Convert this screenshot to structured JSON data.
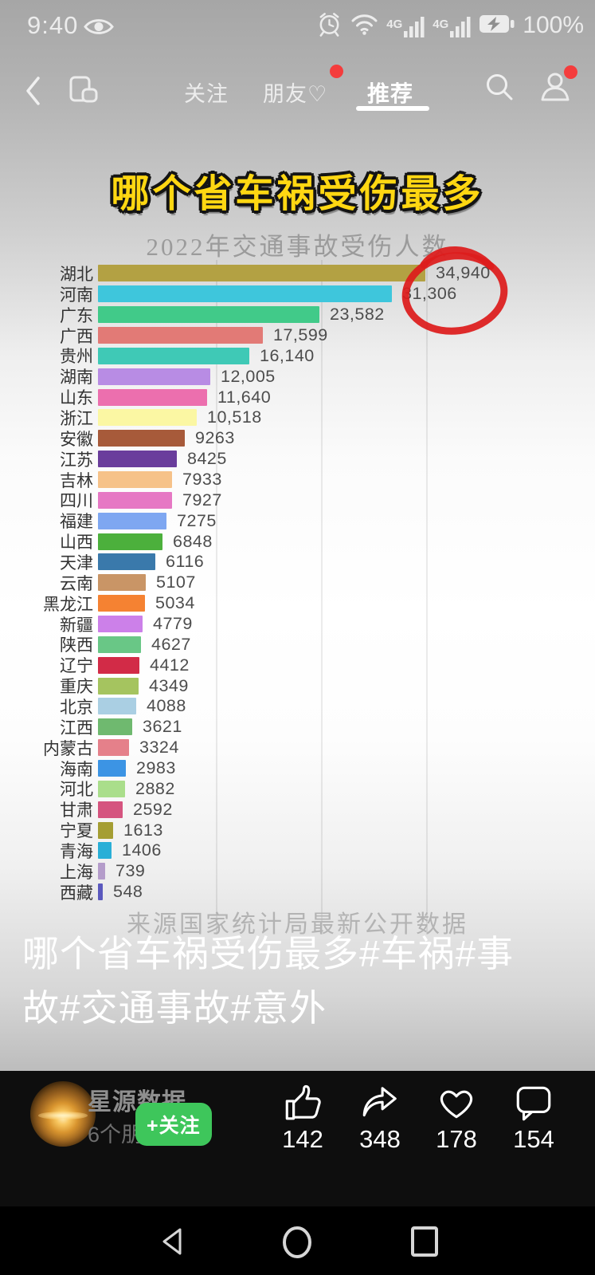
{
  "status_bar": {
    "time": "9:40",
    "battery": "100%",
    "network": [
      "4G",
      "4G"
    ]
  },
  "top_nav": {
    "tabs": [
      {
        "label": "关注",
        "active": false
      },
      {
        "label": "朋友♡",
        "active": false,
        "badge": true
      },
      {
        "label": "推荐",
        "active": true
      }
    ]
  },
  "overlay": {
    "headline": "哪个省车祸受伤最多"
  },
  "chart_data": {
    "type": "bar",
    "orientation": "horizontal",
    "title": "2022年交通事故受伤人数",
    "source": "来源国家统计局最新公开数据",
    "xlim": [
      0,
      35000
    ],
    "grid": true,
    "categories": [
      "湖北",
      "河南",
      "广东",
      "广西",
      "贵州",
      "湖南",
      "山东",
      "浙江",
      "安徽",
      "江苏",
      "吉林",
      "四川",
      "福建",
      "山西",
      "天津",
      "云南",
      "黑龙江",
      "新疆",
      "陕西",
      "辽宁",
      "重庆",
      "北京",
      "江西",
      "内蒙古",
      "海南",
      "河北",
      "甘肃",
      "宁夏",
      "青海",
      "上海",
      "西藏"
    ],
    "values": [
      34940,
      31306,
      23582,
      17599,
      16140,
      12005,
      11640,
      10518,
      9263,
      8425,
      7933,
      7927,
      7275,
      6848,
      6116,
      5107,
      5034,
      4779,
      4627,
      4412,
      4349,
      4088,
      3621,
      3324,
      2983,
      2882,
      2592,
      1613,
      1406,
      739,
      548
    ],
    "value_labels": [
      "34,940",
      "31,306",
      "23,582",
      "17,599",
      "16,140",
      "12,005",
      "11,640",
      "10,518",
      "9263",
      "8425",
      "7933",
      "7927",
      "7275",
      "6848",
      "6116",
      "5107",
      "5034",
      "4779",
      "4627",
      "4412",
      "4349",
      "4088",
      "3621",
      "3324",
      "2983",
      "2882",
      "2592",
      "1613",
      "1406",
      "739",
      "548"
    ],
    "bar_colors": [
      "#b3a143",
      "#3ec6dc",
      "#41ca89",
      "#e27a76",
      "#3fc9b6",
      "#b88ce4",
      "#ec6fae",
      "#fbf7a3",
      "#a75a3a",
      "#6a3d9c",
      "#f6c289",
      "#e678c4",
      "#7ea7f1",
      "#4cb03c",
      "#3a79ab",
      "#c99566",
      "#f58232",
      "#cc80e9",
      "#69c786",
      "#d22b47",
      "#a5c45f",
      "#aacfe3",
      "#6fb96f",
      "#e5808a",
      "#3c94e4",
      "#aade8b",
      "#d5547f",
      "#a59e33",
      "#29afd7",
      "#b49cca",
      "#5b59be"
    ],
    "annotation": "red hand-drawn circle around top values 34,940 / 31,306"
  },
  "caption": {
    "text": "哪个省车祸受伤最多#车祸#事故#交通事故#意外"
  },
  "author_bar": {
    "username": "星源数据",
    "friends_note": "6个朋友关注",
    "follow_label": "+关注",
    "actions": [
      {
        "name": "like",
        "count": "142"
      },
      {
        "name": "share",
        "count": "348"
      },
      {
        "name": "favorite",
        "count": "178"
      },
      {
        "name": "comment",
        "count": "154"
      }
    ]
  },
  "colors": {
    "accent_red": "#f43c3c",
    "follow_green": "#3ec65b",
    "highlight_yellow": "#ffd712"
  }
}
